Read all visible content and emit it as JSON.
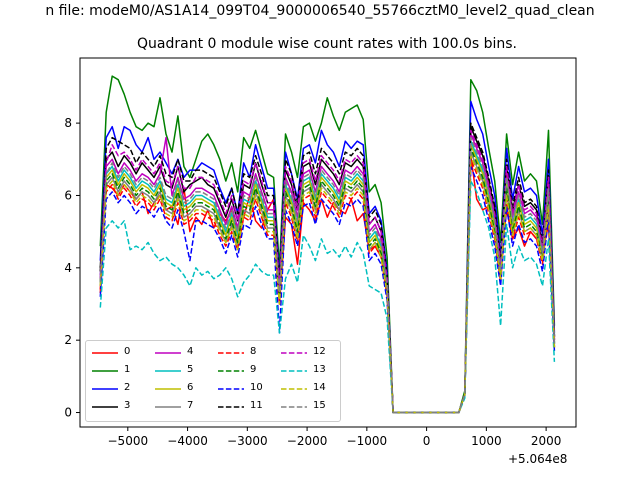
{
  "figure": {
    "suptitle": "n file: modeM0/AS1A14_099T04_9000006540_55766cztM0_level2_quad_clean",
    "offset_text": "+5.064e8"
  },
  "chart_data": {
    "type": "line",
    "title": "Quadrant 0 module wise count rates with 100.0s bins.",
    "xlabel": "",
    "ylabel": "",
    "xlim": [
      -5800,
      2500
    ],
    "ylim": [
      -0.4,
      9.8
    ],
    "x_offset": 506400000,
    "xticks": [
      -5000,
      -4000,
      -3000,
      -2000,
      -1000,
      0,
      1000,
      2000
    ],
    "xtick_labels": [
      "−5000",
      "−4000",
      "−3000",
      "−2000",
      "−1000",
      "0",
      "1000",
      "2000"
    ],
    "yticks": [
      0,
      2,
      4,
      6,
      8
    ],
    "ytick_labels": [
      "0",
      "2",
      "4",
      "6",
      "8"
    ],
    "grid": false,
    "legend_position": "lower-left",
    "legend_columns": 4,
    "x": [
      -5461,
      -5361,
      -5261,
      -5161,
      -5061,
      -4961,
      -4861,
      -4761,
      -4661,
      -4561,
      -4461,
      -4361,
      -4261,
      -4161,
      -4061,
      -3961,
      -3861,
      -3761,
      -3661,
      -3561,
      -3461,
      -3361,
      -3261,
      -3161,
      -3061,
      -2961,
      -2861,
      -2761,
      -2661,
      -2561,
      -2461,
      -2361,
      -2261,
      -2161,
      -2061,
      -1961,
      -1861,
      -1761,
      -1661,
      -1561,
      -1461,
      -1361,
      -1261,
      -1161,
      -1061,
      -961,
      -861,
      -761,
      -661,
      -561,
      539,
      639,
      739,
      839,
      939,
      1039,
      1139,
      1239,
      1339,
      1439,
      1539,
      1639,
      1739,
      1839,
      1939,
      2039,
      2139
    ],
    "series": [
      {
        "name": "0",
        "color": "#ff0000",
        "dash": "solid",
        "values": [
          3.3,
          6.3,
          6.2,
          6.0,
          6.3,
          6.1,
          5.9,
          6.1,
          5.5,
          5.8,
          6.0,
          5.6,
          5.7,
          5.2,
          6.2,
          5.0,
          5.4,
          5.2,
          5.6,
          5.1,
          5.5,
          5.3,
          5.6,
          5.0,
          5.4,
          6.0,
          5.3,
          5.1,
          5.6,
          5.9,
          3.0,
          5.4,
          5.2,
          4.1,
          5.8,
          5.6,
          5.3,
          5.9,
          5.4,
          5.8,
          5.6,
          5.5,
          5.9,
          5.3,
          5.5,
          4.5,
          4.6,
          4.3,
          3.7,
          0.0,
          0.0,
          0.5,
          7.1,
          5.9,
          5.6,
          5.7,
          5.4,
          4.1,
          5.6,
          4.8,
          5.1,
          4.6,
          5.0,
          4.8,
          4.4,
          5.2,
          2.0
        ]
      },
      {
        "name": "1",
        "color": "#008000",
        "dash": "solid",
        "values": [
          4.6,
          8.3,
          9.3,
          9.2,
          8.8,
          8.3,
          7.9,
          7.8,
          8.0,
          7.9,
          8.7,
          7.7,
          7.2,
          8.2,
          6.8,
          6.5,
          7.0,
          7.5,
          7.7,
          7.4,
          7.0,
          6.4,
          6.9,
          6.1,
          7.6,
          7.3,
          7.8,
          7.2,
          6.6,
          6.5,
          4.0,
          7.7,
          7.2,
          6.5,
          7.9,
          8.0,
          7.5,
          8.0,
          8.7,
          8.2,
          7.8,
          8.3,
          8.4,
          8.5,
          8.1,
          6.1,
          6.3,
          5.8,
          4.3,
          0.0,
          0.0,
          0.6,
          9.2,
          8.9,
          8.3,
          7.3,
          6.4,
          4.7,
          7.7,
          6.3,
          7.2,
          6.4,
          6.6,
          6.4,
          5.2,
          7.8,
          2.4
        ]
      },
      {
        "name": "2",
        "color": "#0000ff",
        "dash": "solid",
        "values": [
          4.2,
          7.6,
          7.9,
          7.3,
          7.9,
          7.8,
          7.4,
          7.2,
          7.6,
          7.0,
          7.2,
          6.9,
          6.6,
          7.0,
          6.5,
          6.7,
          6.7,
          6.9,
          6.8,
          6.7,
          6.2,
          5.8,
          6.2,
          5.5,
          6.9,
          6.5,
          7.4,
          6.8,
          6.2,
          6.2,
          3.7,
          7.2,
          6.6,
          5.9,
          7.3,
          7.4,
          6.9,
          7.8,
          7.4,
          7.2,
          6.8,
          7.5,
          7.3,
          7.5,
          7.4,
          5.5,
          5.7,
          5.3,
          3.9,
          0.0,
          0.0,
          0.5,
          8.6,
          8.1,
          7.7,
          6.8,
          6.0,
          4.3,
          7.3,
          5.9,
          6.8,
          6.1,
          6.2,
          6.0,
          4.9,
          7.0,
          2.2
        ]
      },
      {
        "name": "3",
        "color": "#000000",
        "dash": "solid",
        "values": [
          4.0,
          7.0,
          7.2,
          6.8,
          7.1,
          6.9,
          6.6,
          6.9,
          6.7,
          6.5,
          6.8,
          6.3,
          6.2,
          6.8,
          6.1,
          6.3,
          6.4,
          6.5,
          6.3,
          6.2,
          5.8,
          5.4,
          5.9,
          5.3,
          6.3,
          6.2,
          6.9,
          6.3,
          5.8,
          5.8,
          3.5,
          6.7,
          6.3,
          5.6,
          6.8,
          6.9,
          6.3,
          7.0,
          6.8,
          6.6,
          6.3,
          6.9,
          6.8,
          7.0,
          6.8,
          5.2,
          5.4,
          5.0,
          3.7,
          0.0,
          0.0,
          0.5,
          7.9,
          7.5,
          7.1,
          6.4,
          5.6,
          4.1,
          6.8,
          5.6,
          6.3,
          5.7,
          5.8,
          5.6,
          4.6,
          6.5,
          2.1
        ]
      },
      {
        "name": "4",
        "color": "#bf00bf",
        "dash": "solid",
        "values": [
          3.8,
          6.8,
          7.0,
          6.6,
          6.9,
          6.7,
          6.4,
          6.6,
          6.5,
          6.3,
          6.6,
          7.6,
          6.0,
          6.5,
          5.9,
          6.0,
          6.2,
          6.2,
          6.1,
          6.0,
          5.6,
          5.2,
          5.7,
          5.1,
          6.1,
          6.0,
          6.6,
          6.1,
          5.6,
          5.6,
          3.4,
          6.5,
          6.1,
          5.4,
          6.6,
          6.7,
          6.1,
          6.8,
          6.6,
          6.4,
          6.1,
          6.7,
          6.6,
          6.8,
          6.6,
          5.0,
          5.2,
          4.8,
          3.6,
          0.0,
          0.0,
          0.5,
          7.7,
          7.3,
          6.9,
          6.2,
          5.4,
          4.0,
          6.6,
          5.4,
          6.1,
          5.5,
          5.6,
          5.4,
          4.5,
          6.3,
          2.0
        ]
      },
      {
        "name": "5",
        "color": "#00bfbf",
        "dash": "solid",
        "values": [
          3.7,
          6.6,
          6.8,
          6.4,
          6.7,
          6.5,
          6.2,
          6.4,
          6.3,
          6.1,
          6.4,
          5.9,
          5.8,
          6.3,
          5.7,
          5.8,
          6.0,
          6.0,
          5.9,
          5.8,
          5.4,
          5.0,
          5.5,
          4.9,
          5.9,
          5.8,
          6.4,
          5.9,
          5.4,
          5.4,
          3.3,
          6.3,
          5.9,
          5.2,
          6.4,
          6.5,
          5.9,
          6.6,
          6.4,
          6.2,
          5.9,
          6.5,
          6.4,
          6.6,
          6.4,
          4.8,
          5.0,
          4.6,
          3.5,
          0.0,
          0.0,
          0.5,
          7.5,
          7.1,
          6.7,
          6.0,
          5.2,
          3.9,
          6.4,
          5.2,
          5.9,
          5.3,
          5.4,
          5.2,
          4.4,
          6.1,
          1.9
        ]
      },
      {
        "name": "6",
        "color": "#bfbf00",
        "dash": "solid",
        "values": [
          3.6,
          6.5,
          6.7,
          6.3,
          6.6,
          6.4,
          6.1,
          6.3,
          6.2,
          6.0,
          6.3,
          5.8,
          5.7,
          6.2,
          5.6,
          5.7,
          5.9,
          5.9,
          5.8,
          5.7,
          5.3,
          4.9,
          5.4,
          4.8,
          5.8,
          5.7,
          6.3,
          5.8,
          5.3,
          5.3,
          3.2,
          6.2,
          5.8,
          5.1,
          6.3,
          6.4,
          5.8,
          6.5,
          6.3,
          6.1,
          5.8,
          6.4,
          6.3,
          6.5,
          6.3,
          4.7,
          4.9,
          4.5,
          3.4,
          0.0,
          0.0,
          0.5,
          7.4,
          7.0,
          6.6,
          5.9,
          5.1,
          3.8,
          6.3,
          5.1,
          5.8,
          5.2,
          5.3,
          5.1,
          4.3,
          6.0,
          1.9
        ]
      },
      {
        "name": "7",
        "color": "#808080",
        "dash": "solid",
        "values": [
          3.5,
          6.3,
          6.5,
          6.1,
          6.4,
          6.2,
          5.9,
          6.1,
          6.0,
          5.8,
          6.1,
          5.6,
          5.5,
          6.0,
          5.4,
          5.5,
          5.7,
          5.7,
          5.6,
          5.5,
          5.1,
          4.7,
          5.2,
          4.6,
          5.6,
          5.5,
          6.1,
          5.6,
          5.1,
          5.1,
          3.1,
          6.0,
          5.6,
          4.9,
          6.1,
          6.2,
          5.6,
          6.3,
          6.1,
          5.9,
          5.6,
          6.2,
          6.1,
          6.3,
          6.1,
          4.5,
          4.7,
          4.4,
          3.3,
          0.0,
          0.0,
          0.5,
          7.2,
          6.8,
          6.4,
          5.7,
          4.9,
          3.7,
          6.1,
          4.9,
          5.6,
          5.0,
          5.1,
          4.9,
          4.2,
          5.8,
          1.8
        ]
      },
      {
        "name": "8",
        "color": "#ff0000",
        "dash": "dashed",
        "values": [
          3.4,
          6.1,
          6.3,
          5.9,
          6.2,
          6.0,
          5.7,
          5.9,
          5.8,
          5.6,
          5.9,
          5.4,
          5.3,
          5.8,
          5.2,
          5.3,
          5.5,
          5.5,
          5.4,
          5.3,
          4.9,
          4.6,
          5.0,
          4.5,
          5.4,
          5.3,
          5.9,
          5.4,
          4.9,
          4.9,
          3.0,
          5.8,
          5.4,
          4.7,
          5.9,
          6.0,
          5.4,
          6.1,
          5.9,
          5.7,
          5.4,
          6.0,
          5.9,
          6.1,
          5.9,
          4.4,
          4.6,
          4.3,
          3.2,
          0.0,
          0.0,
          0.5,
          7.0,
          6.6,
          6.2,
          5.5,
          4.8,
          3.6,
          5.9,
          4.8,
          5.4,
          4.9,
          5.0,
          4.8,
          4.1,
          5.6,
          1.8
        ]
      },
      {
        "name": "9",
        "color": "#008000",
        "dash": "dashed",
        "values": [
          3.6,
          6.4,
          6.6,
          6.2,
          6.5,
          6.3,
          6.0,
          6.2,
          6.1,
          5.9,
          6.2,
          5.7,
          5.6,
          6.1,
          5.5,
          5.6,
          5.8,
          5.8,
          5.7,
          5.6,
          5.2,
          4.8,
          5.3,
          4.7,
          5.7,
          5.6,
          6.2,
          5.7,
          5.2,
          5.2,
          3.2,
          6.1,
          5.7,
          5.0,
          6.2,
          6.3,
          5.7,
          6.4,
          6.2,
          6.0,
          5.7,
          6.3,
          6.2,
          6.4,
          6.2,
          4.6,
          4.8,
          4.4,
          3.3,
          0.0,
          0.0,
          0.5,
          7.3,
          6.9,
          6.5,
          5.8,
          5.0,
          3.8,
          6.2,
          5.0,
          5.7,
          5.1,
          5.2,
          5.0,
          4.3,
          5.9,
          1.9
        ]
      },
      {
        "name": "10",
        "color": "#0000ff",
        "dash": "dashed",
        "values": [
          3.2,
          5.9,
          6.1,
          5.8,
          6.0,
          5.8,
          5.5,
          5.7,
          5.6,
          5.4,
          5.7,
          5.3,
          5.1,
          5.6,
          5.0,
          4.2,
          5.3,
          5.3,
          5.2,
          5.1,
          4.8,
          4.4,
          4.9,
          4.3,
          5.2,
          5.1,
          5.7,
          5.2,
          4.8,
          4.8,
          2.2,
          5.6,
          5.2,
          4.6,
          5.7,
          5.8,
          5.2,
          5.9,
          5.7,
          5.5,
          5.2,
          5.8,
          5.7,
          5.9,
          5.7,
          4.2,
          4.4,
          4.1,
          3.1,
          0.0,
          0.0,
          0.5,
          6.8,
          6.4,
          6.0,
          5.3,
          4.6,
          3.5,
          5.7,
          4.6,
          5.2,
          4.7,
          4.8,
          4.6,
          3.9,
          5.4,
          1.7
        ]
      },
      {
        "name": "11",
        "color": "#000000",
        "dash": "dashed",
        "values": [
          3.9,
          7.3,
          7.6,
          7.5,
          7.4,
          7.3,
          6.9,
          7.2,
          7.0,
          6.8,
          7.1,
          6.6,
          6.5,
          7.0,
          6.4,
          6.4,
          6.7,
          6.7,
          6.6,
          6.5,
          6.1,
          5.7,
          6.2,
          5.5,
          6.6,
          6.5,
          7.1,
          6.6,
          6.0,
          6.0,
          3.6,
          7.0,
          6.6,
          5.8,
          7.1,
          7.2,
          6.6,
          7.3,
          7.1,
          6.9,
          6.6,
          7.2,
          7.1,
          7.3,
          7.1,
          5.4,
          5.6,
          5.2,
          3.8,
          0.0,
          0.0,
          0.5,
          8.0,
          7.6,
          7.2,
          6.5,
          5.7,
          4.2,
          7.0,
          5.7,
          6.5,
          5.8,
          5.9,
          5.7,
          4.7,
          6.7,
          2.1
        ]
      },
      {
        "name": "12",
        "color": "#bf00bf",
        "dash": "dashed",
        "values": [
          3.7,
          6.9,
          7.4,
          7.1,
          7.2,
          7.0,
          6.7,
          7.0,
          6.8,
          6.6,
          6.9,
          6.4,
          6.3,
          6.8,
          6.2,
          6.2,
          6.5,
          6.5,
          6.4,
          6.3,
          5.9,
          5.5,
          6.0,
          5.3,
          6.4,
          6.3,
          6.9,
          6.4,
          5.8,
          5.8,
          3.5,
          6.8,
          6.4,
          5.6,
          6.9,
          7.0,
          6.4,
          7.1,
          6.9,
          6.7,
          6.4,
          7.0,
          6.9,
          7.1,
          6.9,
          5.2,
          5.4,
          5.0,
          3.7,
          0.0,
          0.0,
          0.5,
          7.8,
          7.4,
          7.0,
          6.3,
          5.5,
          4.1,
          6.8,
          5.5,
          6.3,
          5.6,
          5.7,
          5.5,
          4.6,
          6.5,
          2.0
        ]
      },
      {
        "name": "13",
        "color": "#00bfbf",
        "dash": "dashed",
        "values": [
          2.9,
          5.1,
          5.3,
          5.1,
          5.3,
          4.5,
          4.6,
          4.5,
          4.7,
          4.4,
          4.2,
          4.3,
          4.1,
          4.0,
          3.8,
          3.5,
          4.0,
          3.8,
          3.9,
          3.7,
          3.8,
          4.0,
          3.7,
          3.2,
          3.6,
          3.8,
          4.1,
          3.9,
          3.8,
          3.8,
          2.2,
          3.7,
          4.1,
          3.6,
          4.9,
          4.6,
          4.2,
          4.8,
          4.4,
          4.5,
          4.3,
          4.6,
          4.3,
          4.7,
          4.4,
          3.5,
          3.4,
          3.3,
          2.6,
          0.0,
          0.0,
          0.4,
          6.4,
          6.1,
          5.6,
          5.1,
          4.3,
          2.4,
          5.2,
          4.0,
          4.6,
          4.2,
          4.3,
          4.1,
          3.5,
          4.8,
          1.4
        ]
      },
      {
        "name": "14",
        "color": "#bfbf00",
        "dash": "dashed",
        "values": [
          3.5,
          6.2,
          6.4,
          6.0,
          6.3,
          6.1,
          5.8,
          6.0,
          5.9,
          5.7,
          6.0,
          5.5,
          5.4,
          5.9,
          5.3,
          5.4,
          5.6,
          5.6,
          5.5,
          5.4,
          5.0,
          4.7,
          5.1,
          4.5,
          5.5,
          5.4,
          6.0,
          5.5,
          5.0,
          5.0,
          3.0,
          5.9,
          5.5,
          4.8,
          6.0,
          6.1,
          5.5,
          6.2,
          6.0,
          5.8,
          5.5,
          6.1,
          6.0,
          6.2,
          6.0,
          4.5,
          4.7,
          4.3,
          3.3,
          0.0,
          0.0,
          0.5,
          7.1,
          6.7,
          6.3,
          5.6,
          4.9,
          3.7,
          6.0,
          4.9,
          5.5,
          5.0,
          5.1,
          4.9,
          4.2,
          5.7,
          1.8
        ]
      },
      {
        "name": "15",
        "color": "#808080",
        "dash": "dashed",
        "values": [
          3.6,
          6.6,
          6.9,
          6.5,
          6.8,
          6.6,
          6.3,
          6.5,
          6.4,
          6.2,
          6.5,
          6.0,
          5.9,
          6.4,
          5.8,
          5.9,
          6.1,
          6.1,
          6.0,
          5.9,
          5.5,
          5.1,
          5.6,
          5.0,
          6.0,
          5.9,
          6.5,
          6.0,
          5.5,
          5.5,
          3.3,
          6.4,
          6.0,
          5.3,
          6.5,
          6.6,
          6.0,
          6.7,
          6.5,
          6.3,
          6.0,
          6.6,
          6.5,
          6.7,
          6.5,
          4.9,
          5.1,
          4.7,
          3.5,
          0.0,
          0.0,
          0.5,
          7.6,
          7.2,
          6.8,
          6.1,
          5.3,
          3.9,
          6.5,
          5.3,
          6.0,
          5.4,
          5.5,
          5.3,
          4.4,
          6.2,
          1.9
        ]
      }
    ]
  }
}
